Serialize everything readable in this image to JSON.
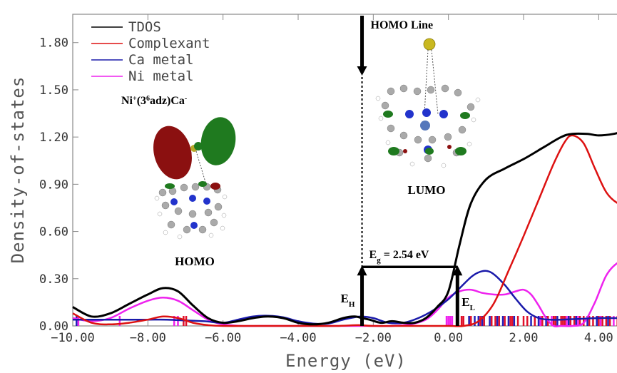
{
  "chart_data": {
    "type": "line",
    "title": "",
    "xlabel": "Energy (eV)",
    "ylabel": "Density-of-states",
    "xlim": [
      -10,
      5
    ],
    "ylim": [
      0,
      1.98
    ],
    "xticks": [
      -10,
      -8,
      -6,
      -4,
      -2,
      0,
      2,
      4
    ],
    "xtick_labels": [
      "−10.00",
      "−8.00",
      "−6.00",
      "−4.00",
      "−2.00",
      "0.00",
      "2.00",
      "4.00"
    ],
    "yticks": [
      0,
      0.3,
      0.6,
      0.9,
      1.2,
      1.5,
      1.8
    ],
    "ytick_labels": [
      "0.00",
      "0.30",
      "0.60",
      "0.90",
      "1.20",
      "1.50",
      "1.80"
    ],
    "legend_position": "top-left",
    "series": [
      {
        "name": "TDOS",
        "color": "#000000",
        "x": [
          -10,
          -9.5,
          -9.0,
          -8.5,
          -8.0,
          -7.6,
          -7.2,
          -6.8,
          -6.4,
          -6.0,
          -5.6,
          -5.2,
          -4.8,
          -4.4,
          -4.0,
          -3.6,
          -3.2,
          -2.8,
          -2.5,
          -2.3,
          -2.1,
          -1.8,
          -1.5,
          -1.2,
          -0.9,
          -0.6,
          -0.3,
          0.0,
          0.3,
          0.6,
          1.0,
          1.5,
          2.0,
          2.5,
          3.0,
          3.3,
          3.7,
          4.0,
          4.4,
          4.7,
          5.0
        ],
        "y": [
          0.12,
          0.06,
          0.08,
          0.14,
          0.2,
          0.24,
          0.22,
          0.13,
          0.05,
          0.02,
          0.03,
          0.05,
          0.06,
          0.05,
          0.02,
          0.01,
          0.02,
          0.05,
          0.06,
          0.05,
          0.04,
          0.02,
          0.03,
          0.02,
          0.02,
          0.05,
          0.12,
          0.22,
          0.52,
          0.78,
          0.93,
          1.0,
          1.06,
          1.13,
          1.2,
          1.22,
          1.22,
          1.21,
          1.22,
          1.24,
          1.27
        ]
      },
      {
        "name": "Complexant",
        "color": "#dd1111",
        "x": [
          -10,
          -9.5,
          -9.0,
          -8.5,
          -8.0,
          -7.6,
          -7.2,
          -6.8,
          -6.4,
          -6.0,
          -5.0,
          -4.0,
          -3.0,
          -2.4,
          -2.0,
          -1.0,
          0.0,
          0.4,
          0.8,
          1.2,
          1.6,
          2.0,
          2.4,
          2.8,
          3.1,
          3.3,
          3.6,
          3.9,
          4.2,
          4.5,
          4.8,
          5.0
        ],
        "y": [
          0.08,
          0.02,
          0.01,
          0.02,
          0.04,
          0.06,
          0.05,
          0.02,
          0.005,
          0.0,
          0.0,
          0.0,
          0.0,
          0.005,
          0.0,
          0.0,
          0.0,
          0.0,
          0.03,
          0.14,
          0.35,
          0.57,
          0.8,
          1.03,
          1.17,
          1.21,
          1.16,
          1.0,
          0.85,
          0.78,
          0.76,
          0.77
        ]
      },
      {
        "name": "Ca metal",
        "color": "#1a1aaa",
        "x": [
          -10,
          -9.5,
          -9.0,
          -8.5,
          -8.0,
          -7.5,
          -7.0,
          -6.5,
          -6.0,
          -5.6,
          -5.2,
          -4.8,
          -4.4,
          -4.0,
          -3.6,
          -3.2,
          -2.8,
          -2.5,
          -2.3,
          -2.0,
          -1.6,
          -1.2,
          -0.8,
          -0.4,
          0.0,
          0.3,
          0.6,
          0.8,
          1.0,
          1.2,
          1.5,
          1.8,
          2.1,
          2.4,
          2.7,
          3.0,
          3.5,
          4.0,
          4.5,
          5.0
        ],
        "y": [
          0.04,
          0.04,
          0.04,
          0.04,
          0.04,
          0.04,
          0.035,
          0.03,
          0.02,
          0.04,
          0.06,
          0.065,
          0.055,
          0.03,
          0.015,
          0.015,
          0.04,
          0.055,
          0.06,
          0.05,
          0.02,
          0.02,
          0.05,
          0.1,
          0.17,
          0.24,
          0.31,
          0.34,
          0.35,
          0.33,
          0.26,
          0.17,
          0.09,
          0.05,
          0.04,
          0.04,
          0.045,
          0.05,
          0.05,
          0.05
        ]
      },
      {
        "name": "Ni metal",
        "color": "#ee22ee",
        "x": [
          -10,
          -9.5,
          -9.0,
          -8.5,
          -8.0,
          -7.6,
          -7.2,
          -6.8,
          -6.4,
          -6.0,
          -5.5,
          -5.0,
          -4.0,
          -3.0,
          -2.5,
          -2.0,
          -1.5,
          -1.0,
          -0.6,
          -0.3,
          0.0,
          0.3,
          0.6,
          0.9,
          1.2,
          1.5,
          1.8,
          2.0,
          2.2,
          2.4,
          2.6,
          2.8,
          3.0,
          3.3,
          3.6,
          3.9,
          4.2,
          4.5,
          4.8,
          5.0
        ],
        "y": [
          0.05,
          0.03,
          0.05,
          0.11,
          0.16,
          0.18,
          0.16,
          0.1,
          0.04,
          0.01,
          0.0,
          0.0,
          0.0,
          0.0,
          0.0,
          0.0,
          0.0,
          0.01,
          0.04,
          0.1,
          0.18,
          0.22,
          0.23,
          0.21,
          0.2,
          0.2,
          0.22,
          0.23,
          0.2,
          0.13,
          0.05,
          0.0,
          0.0,
          0.0,
          0.02,
          0.15,
          0.32,
          0.4,
          0.42,
          0.42
        ]
      }
    ],
    "stick_markers": {
      "red": [
        -9.9,
        -7.05,
        -6.98,
        0.35,
        0.4,
        0.55,
        0.6,
        0.85,
        0.95,
        1.15,
        1.25,
        1.35,
        1.5,
        1.65,
        1.7,
        1.85,
        2.0,
        2.1,
        2.3,
        2.5,
        2.65,
        2.8,
        2.85,
        3.0,
        3.05,
        3.1,
        3.25,
        3.35,
        3.5,
        3.6,
        3.75,
        3.85,
        4.0,
        4.1,
        4.2,
        4.3,
        4.5,
        4.6,
        4.8,
        4.9
      ],
      "blue": [
        -9.9,
        0.55,
        0.7,
        0.8,
        0.9,
        1.1,
        1.3,
        1.45,
        1.6,
        1.75,
        2.2,
        2.4,
        2.6,
        2.9,
        3.2,
        3.4,
        3.7,
        3.95,
        4.25,
        4.55,
        4.85
      ],
      "magenta": [
        -9.85,
        -8.75,
        -7.3,
        -7.2,
        -0.05,
        0.0,
        0.05,
        0.1,
        2.45,
        2.75,
        3.15,
        3.45,
        4.05,
        4.4
      ]
    },
    "annotations": {
      "homo_line": "HOMO Line",
      "homo_line_x": -2.3,
      "fermi_x": 0.24,
      "gap_label_base": "E",
      "gap_label_sub": "g",
      "gap_label_rest": " = 2.54 eV",
      "eh_base": "E",
      "eh_sub": "H",
      "el_base": "E",
      "el_sub": "L",
      "homo_label": "HOMO",
      "lumo_label": "LUMO",
      "complex_formula_parts": [
        "Ni",
        "+",
        "(3",
        "6",
        "adz)Ca",
        "-"
      ]
    }
  }
}
